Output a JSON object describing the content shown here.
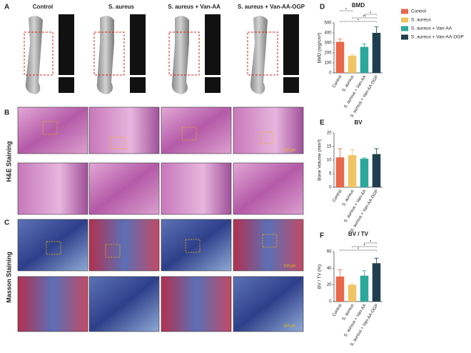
{
  "figure": {
    "panel_labels": [
      "A",
      "B",
      "C",
      "D",
      "E",
      "F"
    ],
    "groups": [
      "Control",
      "S. aureus",
      "S. aureus + Van-AA",
      "S. aureus + Van-AA-OGP"
    ],
    "row_labels": [
      "H&E Staining",
      "Masson Staining"
    ],
    "scale_bars": [
      "500 μm",
      "100 μm",
      "200 μm"
    ]
  },
  "chart_data": [
    {
      "type": "bar",
      "title": "BMD",
      "y_label": "BMD (mg/cm³)",
      "categories": [
        "Control",
        "S. aureus",
        "S. aureus + Van-AA",
        "S. aureus + Van-AA-OGP"
      ],
      "values": [
        310,
        170,
        260,
        400
      ],
      "errors": [
        30,
        10,
        30,
        60
      ],
      "colors": [
        "#e8684a",
        "#f0c462",
        "#2aa89a",
        "#1f3f50"
      ],
      "ylim": [
        0,
        500
      ],
      "yticks": [
        0,
        100,
        200,
        300,
        400,
        500
      ],
      "legend": "right",
      "annotations": [
        {
          "text": "*",
          "from": 0,
          "to": 3
        },
        {
          "text": "**",
          "from": 1,
          "to": 3
        },
        {
          "text": "*",
          "from": 2,
          "to": 3
        },
        {
          "text": "*",
          "from": 0,
          "to": 1
        }
      ]
    },
    {
      "type": "bar",
      "title": "BV",
      "y_label": "Bone Volume (mm³)",
      "categories": [
        "Control",
        "S. aureus",
        "S. aureus + Van-AA",
        "S. aureus + Van-AA-OGP"
      ],
      "values": [
        11,
        11.8,
        10.5,
        12.2
      ],
      "errors": [
        3.2,
        2,
        0.3,
        2
      ],
      "colors": [
        "#e8684a",
        "#f0c462",
        "#2aa89a",
        "#1f3f50"
      ],
      "ylim": [
        0,
        20
      ],
      "yticks": [
        0,
        5,
        10,
        15,
        20
      ]
    },
    {
      "type": "bar",
      "title": "BV / TV",
      "y_label": "BV / TV (%)",
      "categories": [
        "Control",
        "S. aureus",
        "S. aureus + Van-AA",
        "S. aureus + Van-AA-OGP"
      ],
      "values": [
        30,
        20,
        31,
        46
      ],
      "errors": [
        8,
        1,
        6,
        6
      ],
      "colors": [
        "#e8684a",
        "#f0c462",
        "#2aa89a",
        "#1f3f50"
      ],
      "ylim": [
        0,
        60
      ],
      "yticks": [
        0,
        20,
        40,
        60
      ],
      "annotations": [
        {
          "text": "*",
          "from": 0,
          "to": 3
        },
        {
          "text": "*",
          "from": 1,
          "to": 3
        },
        {
          "text": "*",
          "from": 2,
          "to": 3
        }
      ]
    }
  ]
}
